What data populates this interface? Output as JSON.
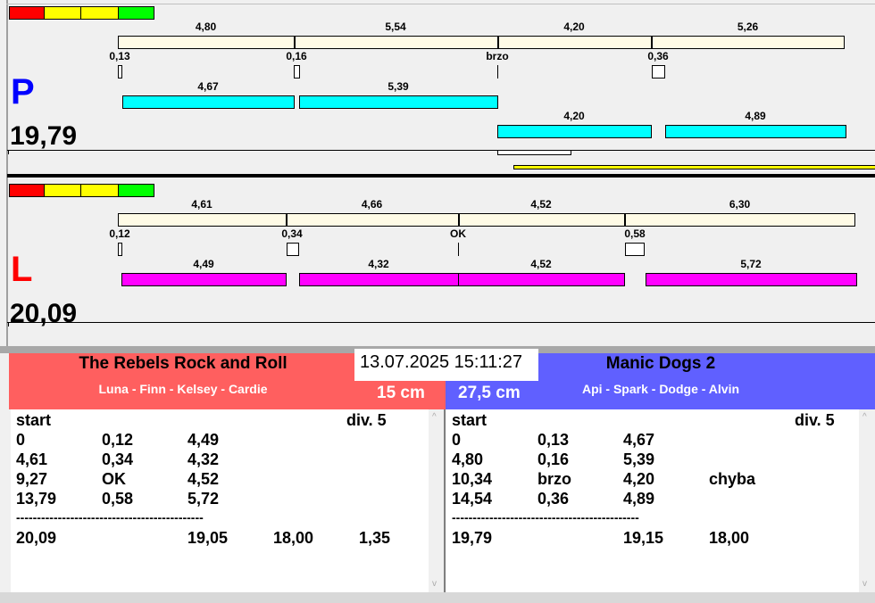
{
  "status_colors": [
    "#ff0000",
    "#ffff00",
    "#ffff00",
    "#00ff00"
  ],
  "lanes": [
    {
      "id": "P",
      "letter": "P",
      "letter_color": "#0000ff",
      "total": "19,79",
      "splits": [
        "4,80",
        "5,54",
        "4,20",
        "5,26"
      ],
      "reactions": [
        "0,13",
        "0,16",
        "brzo",
        "0,36"
      ],
      "runs": [
        [
          "4,67",
          "5,39"
        ],
        [
          "4,20",
          "4,89"
        ]
      ],
      "run_color": "#00ffff"
    },
    {
      "id": "L",
      "letter": "L",
      "letter_color": "#ff0000",
      "total": "20,09",
      "splits": [
        "4,61",
        "4,66",
        "4,52",
        "6,30"
      ],
      "reactions": [
        "0,12",
        "0,34",
        "OK",
        "0,58"
      ],
      "runs": [
        [
          "4,49",
          "4,32",
          "4,52",
          "5,72"
        ]
      ],
      "run_color": "#ff00ff"
    }
  ],
  "datetime": "13.07.2025 15:11:27",
  "teams": [
    {
      "name": "The Rebels Rock and Roll",
      "members": "Luna - Finn - Kelsey - Cardie",
      "height": "15 cm",
      "color": "#ff5f5f",
      "header": {
        "start": "start",
        "div": "div.  5"
      },
      "rows": [
        [
          "0",
          "0,12",
          "4,49",
          ""
        ],
        [
          "4,61",
          "0,34",
          "4,32",
          ""
        ],
        [
          "9,27",
          "OK",
          "4,52",
          ""
        ],
        [
          "13,79",
          "0,58",
          "5,72",
          ""
        ]
      ],
      "separator": "---------------------------------------------",
      "totals": [
        "20,09",
        "",
        "19,05",
        "18,00",
        "1,35"
      ]
    },
    {
      "name": "Manic Dogs 2",
      "members": "Api - Spark - Dodge - Alvin",
      "height": "27,5 cm",
      "color": "#6060ff",
      "header": {
        "start": "start",
        "div": "div.  5"
      },
      "rows": [
        [
          "0",
          "0,13",
          "4,67",
          ""
        ],
        [
          "4,80",
          "0,16",
          "5,39",
          ""
        ],
        [
          "10,34",
          "brzo",
          "4,20",
          "chyba"
        ],
        [
          "14,54",
          "0,36",
          "4,89",
          ""
        ]
      ],
      "separator": "---------------------------------------------",
      "totals": [
        "19,79",
        "",
        "19,15",
        "18,00",
        ""
      ]
    }
  ]
}
